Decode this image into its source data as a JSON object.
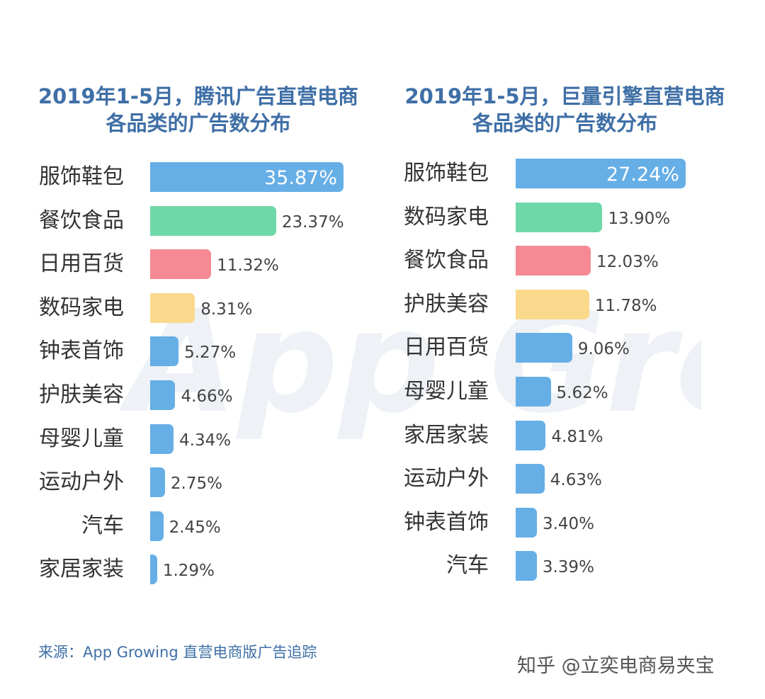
{
  "colors": {
    "blue": "#66aee6",
    "green": "#6fd8a9",
    "red": "#f58a94",
    "yellow": "#fad98d",
    "title": "#3f6fa6"
  },
  "watermark": {
    "text": "App Growing"
  },
  "chart_data": [
    {
      "type": "bar",
      "orientation": "horizontal",
      "title": "2019年1-5月，腾讯广告直营电商各品类的广告数分布",
      "title_lines": [
        "2019年1-5月，腾讯广告直营电商",
        "各品类的广告数分布"
      ],
      "categories": [
        "服饰鞋包",
        "餐饮食品",
        "日用百货",
        "数码家电",
        "钟表首饰",
        "护肤美容",
        "母婴儿童",
        "运动户外",
        "汽车",
        "家居家装"
      ],
      "values": [
        35.87,
        23.37,
        11.32,
        8.31,
        5.27,
        4.66,
        4.34,
        2.75,
        2.45,
        1.29
      ],
      "value_labels": [
        "35.87%",
        "23.37%",
        "11.32%",
        "8.31%",
        "5.27%",
        "4.66%",
        "4.34%",
        "2.75%",
        "2.45%",
        "1.29%"
      ],
      "bar_colors": [
        "blue",
        "green",
        "red",
        "yellow",
        "blue",
        "blue",
        "blue",
        "blue",
        "blue",
        "blue"
      ],
      "value_unit": "%"
    },
    {
      "type": "bar",
      "orientation": "horizontal",
      "title": "2019年1-5月，巨量引擎直营电商各品类的广告数分布",
      "title_lines": [
        "2019年1-5月，巨量引擎直营电商",
        "各品类的广告数分布"
      ],
      "categories": [
        "服饰鞋包",
        "数码家电",
        "餐饮食品",
        "护肤美容",
        "日用百货",
        "母婴儿童",
        "家居家装",
        "运动户外",
        "钟表首饰",
        "汽车"
      ],
      "values": [
        27.24,
        13.9,
        12.03,
        11.78,
        9.06,
        5.62,
        4.81,
        4.63,
        3.4,
        3.39
      ],
      "value_labels": [
        "27.24%",
        "13.90%",
        "12.03%",
        "11.78%",
        "9.06%",
        "5.62%",
        "4.81%",
        "4.63%",
        "3.40%",
        "3.39%"
      ],
      "bar_colors": [
        "blue",
        "green",
        "red",
        "yellow",
        "blue",
        "blue",
        "blue",
        "blue",
        "blue",
        "blue"
      ],
      "value_unit": "%"
    }
  ],
  "footer": {
    "source": "来源：App Growing 直营电商版广告追踪",
    "credit": "知乎 @立奕电商易夹宝"
  }
}
